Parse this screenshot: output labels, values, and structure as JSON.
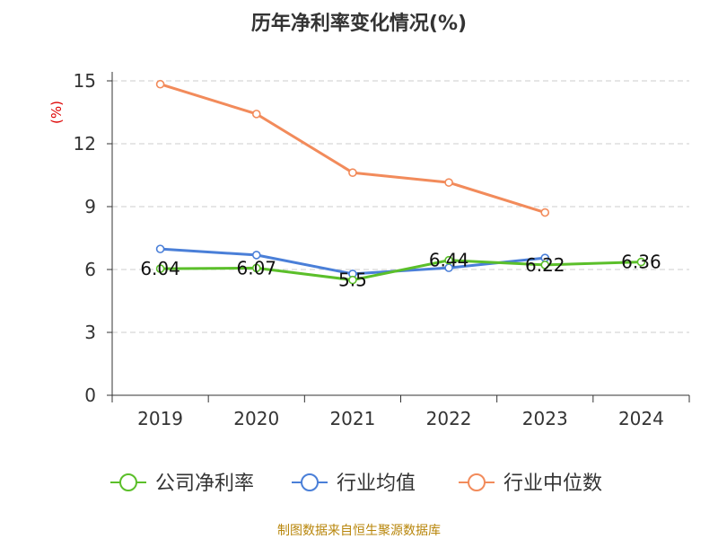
{
  "title": "历年净利率变化情况(%)",
  "source": "制图数据来自恒生聚源数据库",
  "colors": {
    "company": "#5bbf2a",
    "industry_avg": "#4a7fd8",
    "industry_median": "#f28b5b",
    "ylabel": "#dd0000",
    "grid": "#cccccc",
    "axis": "#333333",
    "source": "#b8860b"
  },
  "chart_data": {
    "type": "line",
    "title": "历年净利率变化情况(%)",
    "ylabel": "(%)",
    "xlabel": "",
    "categories": [
      "2019",
      "2020",
      "2021",
      "2022",
      "2023",
      "2024"
    ],
    "ylim": [
      0,
      15
    ],
    "yticks": [
      0,
      3,
      6,
      9,
      12,
      15
    ],
    "grid": true,
    "legend_position": "bottom",
    "series": [
      {
        "name": "公司净利率",
        "color": "#5bbf2a",
        "values": [
          6.04,
          6.07,
          5.5,
          6.44,
          6.22,
          6.36
        ],
        "labels": [
          "6.04",
          "6.07",
          "5.5",
          "6.44",
          "6.22",
          "6.36"
        ]
      },
      {
        "name": "行业均值",
        "color": "#4a7fd8",
        "values": [
          6.98,
          6.69,
          5.79,
          6.08,
          6.55,
          null
        ]
      },
      {
        "name": "行业中位数",
        "color": "#f28b5b",
        "values": [
          14.84,
          13.42,
          10.62,
          10.15,
          8.72,
          null
        ]
      }
    ]
  }
}
